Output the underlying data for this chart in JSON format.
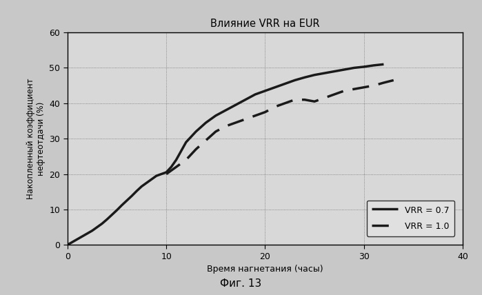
{
  "title": "Влияние VRR на EUR",
  "xlabel": "Время нагнетания (часы)",
  "ylabel": "Накопленный коэффициент\nнефтеотдачи (%)",
  "xlim": [
    0,
    40
  ],
  "ylim": [
    0,
    60
  ],
  "xticks": [
    0,
    10,
    20,
    30,
    40
  ],
  "yticks": [
    0,
    10,
    20,
    30,
    40,
    50,
    60
  ],
  "legend_labels": [
    "VRR = 0.7",
    "VRR = 1.0"
  ],
  "caption": "Фиг. 13",
  "vrr07_x": [
    0,
    0.5,
    1,
    1.5,
    2,
    2.5,
    3,
    3.5,
    4,
    4.5,
    5,
    5.5,
    6,
    6.5,
    7,
    7.5,
    8,
    8.5,
    9,
    9.5,
    10,
    10.5,
    11,
    11.5,
    12,
    13,
    14,
    15,
    16,
    17,
    18,
    19,
    20,
    21,
    22,
    23,
    24,
    25,
    26,
    27,
    28,
    29,
    30,
    31,
    32
  ],
  "vrr07_y": [
    0,
    0.8,
    1.6,
    2.4,
    3.2,
    4.0,
    5.0,
    6.0,
    7.2,
    8.5,
    9.8,
    11.2,
    12.5,
    13.8,
    15.2,
    16.5,
    17.5,
    18.5,
    19.5,
    20.0,
    20.5,
    22.0,
    24.0,
    26.5,
    29.0,
    32.0,
    34.5,
    36.5,
    38.0,
    39.5,
    41.0,
    42.5,
    43.5,
    44.5,
    45.5,
    46.5,
    47.3,
    48.0,
    48.5,
    49.0,
    49.5,
    50.0,
    50.3,
    50.7,
    51.0
  ],
  "vrr10_x": [
    10.0,
    10.5,
    11,
    11.5,
    12,
    12.5,
    13,
    14,
    15,
    16,
    17,
    18,
    19,
    20,
    21,
    22,
    23,
    24,
    25,
    26,
    27,
    28,
    29,
    30,
    31,
    32,
    33
  ],
  "vrr10_y": [
    20.0,
    21.0,
    22.0,
    23.0,
    24.0,
    25.5,
    27.0,
    29.5,
    32.0,
    33.5,
    34.5,
    35.5,
    36.5,
    37.5,
    39.0,
    40.0,
    41.0,
    41.0,
    40.5,
    41.5,
    42.5,
    43.5,
    44.0,
    44.5,
    45.0,
    45.8,
    46.5
  ],
  "line_color": "#1a1a1a",
  "bg_color": "#e8e8e8",
  "plot_bg_color": "#d8d8d8",
  "grid_color": "#555555",
  "figure_bg": "#c8c8c8"
}
